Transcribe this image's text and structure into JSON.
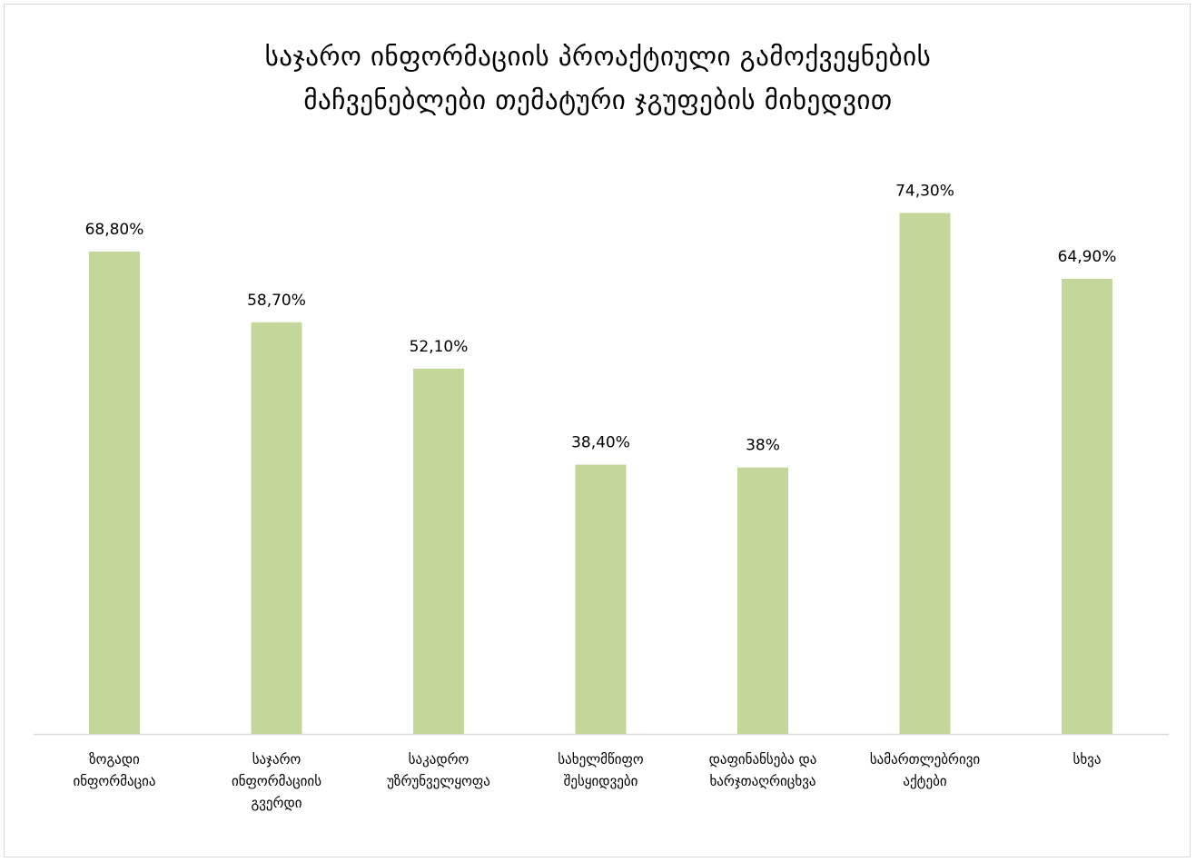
{
  "chart_data": {
    "type": "bar",
    "title_lines": [
      "საჯარო ინფორმაციის პროაქტიული გამოქვეყნების",
      "მაჩვენებლები თემატური ჯგუფების მიხედვით"
    ],
    "categories": [
      [
        "ზოგადი",
        "ინფორმაცია"
      ],
      [
        "საჯარო",
        "ინფორმაციის",
        "გვერდი"
      ],
      [
        "საკადრო",
        "უზრუნველყოფა"
      ],
      [
        "სახელმწიფო",
        "შესყიდვები"
      ],
      [
        "დაფინანსება და",
        "ხარჯთაღრიცხვა"
      ],
      [
        "სამართლებრივი",
        "აქტები"
      ],
      [
        "სხვა"
      ]
    ],
    "values": [
      68.8,
      58.7,
      52.1,
      38.4,
      38,
      74.3,
      64.9
    ],
    "data_labels": [
      "68,80%",
      "58,70%",
      "52,10%",
      "38,40%",
      "38%",
      "74,30%",
      "64,90%"
    ],
    "ylim": [
      0,
      100
    ],
    "grid": false,
    "legend": false,
    "bar_color": "#c4d79b",
    "axis_color": "#d9d9d9"
  }
}
